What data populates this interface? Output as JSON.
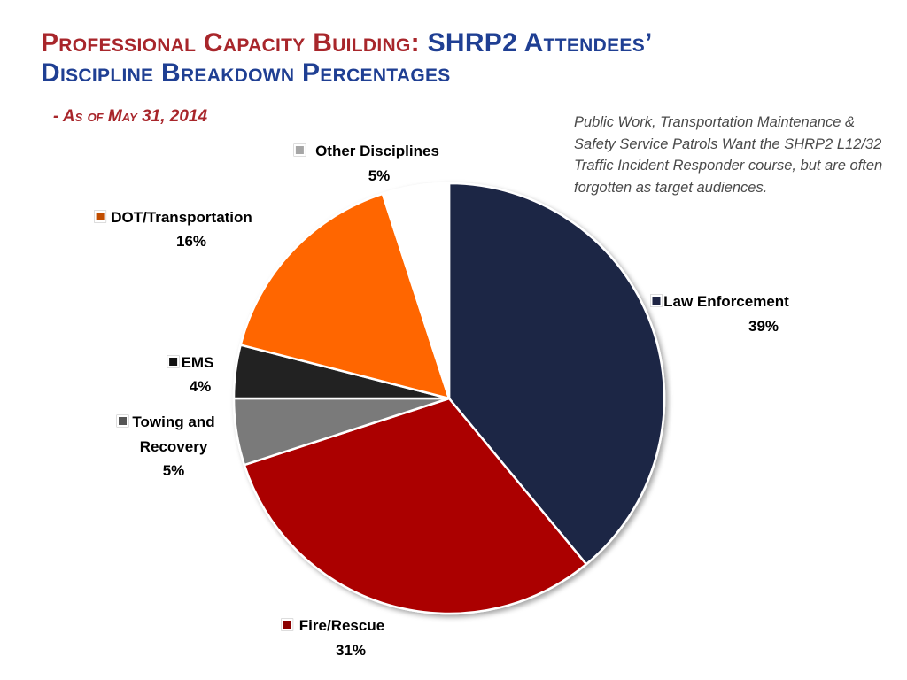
{
  "slide": {
    "title_part1": "Professional Capacity Building:",
    "title_part2": "SHRP2 Attendees’",
    "title_part3": "Discipline",
    "title_part4": "Breakdown Percentages",
    "subtitle": "- As of May 31, 2014",
    "note": "Public Work, Transportation Maintenance & Safety Service Patrols Want the SHRP2 L12/32 Traffic Incident Responder course, but are often forgotten as target audiences."
  },
  "chart_data": {
    "type": "pie",
    "title": "",
    "slices": [
      {
        "label": "Law Enforcement",
        "value": 39,
        "display": "39%",
        "color": "#1f2545"
      },
      {
        "label": "Fire/Rescue",
        "value": 31,
        "display": "31%",
        "color": "#ab0606"
      },
      {
        "label": "Towing and Recovery",
        "value": 5,
        "display": "5%",
        "color": "#7a7a7a"
      },
      {
        "label": "EMS",
        "value": 4,
        "display": "4%",
        "color": "#222222"
      },
      {
        "label": "DOT/Transportation",
        "value": 16,
        "display": "16%",
        "color": "#ff6600"
      },
      {
        "label": "Other Disciplines",
        "value": 5,
        "display": "5%",
        "color": "#ffffff"
      }
    ],
    "legend_marker_colors": [
      "#1f2545",
      "#8b0000",
      "#555555",
      "#111111",
      "#c14d00",
      "#a6a6a6"
    ]
  }
}
